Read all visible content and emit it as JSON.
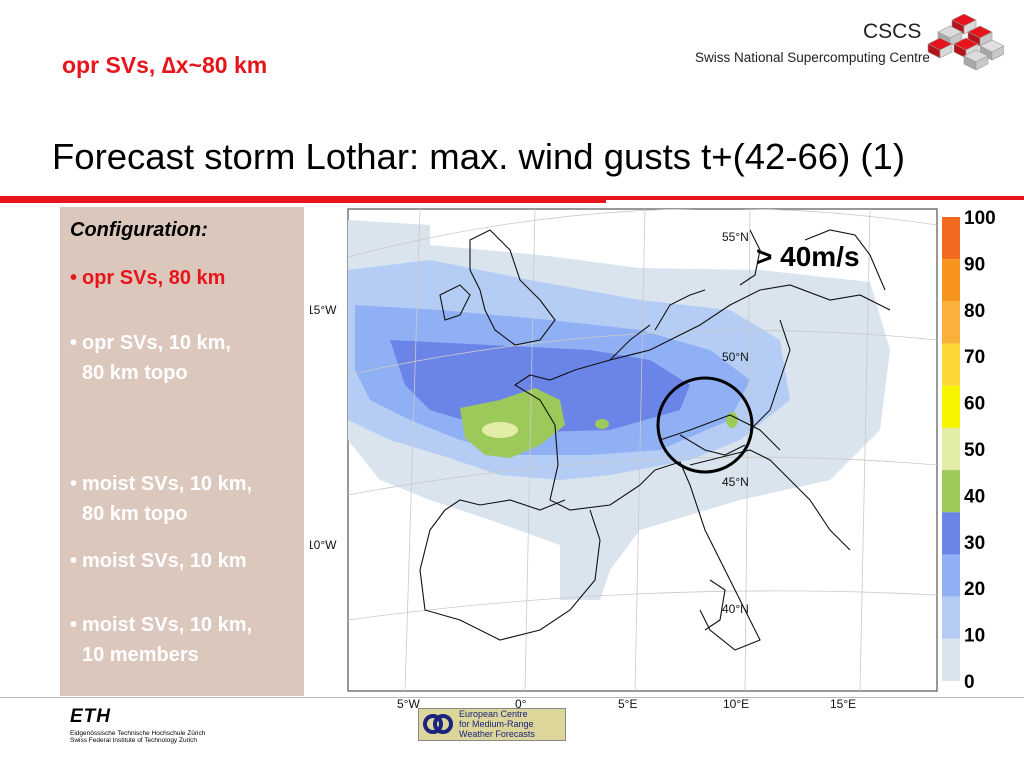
{
  "header": {
    "top_label": "opr SVs, ∆x~80 km",
    "org_name": "CSCS",
    "org_subtitle": "Swiss National Supercomputing Centre",
    "title": "Forecast storm Lothar: max. wind gusts t+(42-66) (1)"
  },
  "config": {
    "heading": "Configuration:",
    "items": [
      {
        "bullet": "•",
        "line1": "opr SVs, 80 km",
        "line2": "",
        "color": "#e8141c"
      },
      {
        "bullet": "•",
        "line1": "opr SVs, 10 km,",
        "line2": "80 km topo",
        "color": "#ffffff"
      },
      {
        "bullet": "•",
        "line1": "moist SVs, 10 km,",
        "line2": "80 km topo",
        "color": "#ffffff"
      },
      {
        "bullet": "•",
        "line1": "moist SVs, 10 km",
        "line2": "",
        "color": "#ffffff"
      },
      {
        "bullet": "•",
        "line1": "moist SVs, 10 km,",
        "line2": "10 members",
        "color": "#ffffff"
      }
    ]
  },
  "map": {
    "annotation": "> 40m/s",
    "lat_labels": [
      "55°N",
      "50°N",
      "45°N",
      "40°N"
    ],
    "lon_labels_left": [
      "15°W",
      "10°W"
    ],
    "lon_labels_bottom": [
      "5°W",
      "0°",
      "5°E",
      "10°E",
      "15°E"
    ]
  },
  "colorbar": {
    "ticks": [
      "100",
      "90",
      "80",
      "70",
      "60",
      "50",
      "40",
      "30",
      "20",
      "10",
      "0"
    ],
    "colors": [
      "#f26a1f",
      "#f7941e",
      "#fbb03b",
      "#fdd835",
      "#f8f500",
      "#e4eda6",
      "#9dc95a",
      "#6b84e8",
      "#8fb0f4",
      "#b5cdf5",
      "#d9e4ef"
    ]
  },
  "footer": {
    "eth_logo": "ETH",
    "eth_line1": "Eidgenössische Technische Hochschule Zürich",
    "eth_line2": "Swiss Federal Institute of Technology Zurich",
    "ecmwf_line1": "European Centre",
    "ecmwf_line2": "for Medium-Range",
    "ecmwf_line3": "Weather Forecasts"
  }
}
